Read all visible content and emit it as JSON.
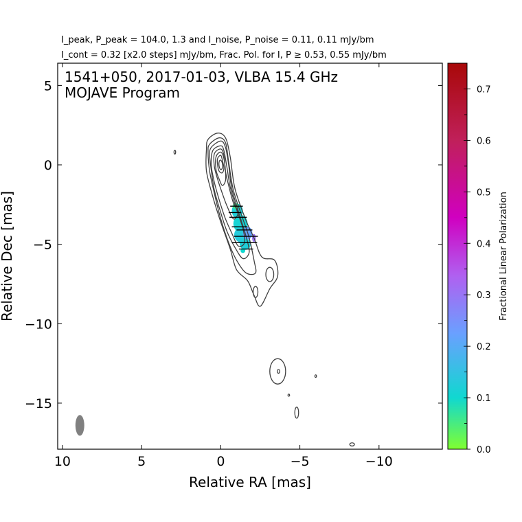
{
  "chart_data": {
    "type": "contour",
    "header": {
      "line1": "I_peak, P_peak = 104.0, 1.3 and I_noise, P_noise = 0.11, 0.11 mJy/bm",
      "line2": "I_cont = 0.32 [x2.0 steps] mJy/bm, Frac. Pol. for I, P ≥ 0.53, 0.55 mJy/bm"
    },
    "title": "1541+050, 2017-01-03, VLBA 15.4 GHz",
    "subtitle": "MOJAVE Program",
    "xlabel": "Relative RA [mas]",
    "ylabel": "Relative Dec [mas]",
    "xlim": [
      10.3,
      -14.0
    ],
    "ylim": [
      -17.9,
      6.4
    ],
    "x_ticks": [
      10,
      5,
      0,
      -5,
      -10
    ],
    "y_ticks": [
      5,
      0,
      -5,
      -10,
      -15
    ],
    "colorbar": {
      "label": "Fractional Linear Polarization",
      "range": [
        0.0,
        0.75
      ],
      "ticks": [
        0.0,
        0.1,
        0.2,
        0.3,
        0.4,
        0.5,
        0.6,
        0.7
      ],
      "colors": [
        "#80ff30",
        "#10d8d0",
        "#6aa0ff",
        "#b060f0",
        "#d000c0",
        "#c0205a",
        "#a80808"
      ]
    },
    "core_contours": [
      {
        "level": 1,
        "points": [
          [
            0.8,
            1.6
          ],
          [
            0.2,
            2.0
          ],
          [
            -0.3,
            1.7
          ],
          [
            -0.6,
            0.5
          ],
          [
            -0.9,
            -1.5
          ],
          [
            -1.6,
            -3.5
          ],
          [
            -2.1,
            -4.6
          ],
          [
            -2.6,
            -5.8
          ],
          [
            -3.4,
            -6.0
          ],
          [
            -3.6,
            -7.0
          ],
          [
            -3.1,
            -7.8
          ],
          [
            -2.5,
            -8.9
          ],
          [
            -2.1,
            -8.2
          ],
          [
            -1.7,
            -7.3
          ],
          [
            -1.0,
            -6.6
          ],
          [
            -0.6,
            -5.3
          ],
          [
            0.0,
            -3.6
          ],
          [
            0.5,
            -2.0
          ],
          [
            0.9,
            -0.4
          ],
          [
            0.9,
            1.0
          ]
        ]
      },
      {
        "level": 2,
        "points": [
          [
            0.7,
            1.3
          ],
          [
            0.1,
            1.7
          ],
          [
            -0.3,
            1.4
          ],
          [
            -0.5,
            0.2
          ],
          [
            -0.8,
            -1.6
          ],
          [
            -1.4,
            -3.4
          ],
          [
            -1.8,
            -4.6
          ],
          [
            -2.1,
            -6.0
          ],
          [
            -2.2,
            -6.8
          ],
          [
            -1.6,
            -6.8
          ],
          [
            -1.0,
            -6.0
          ],
          [
            -0.5,
            -4.9
          ],
          [
            0.0,
            -3.4
          ],
          [
            0.4,
            -1.8
          ],
          [
            0.7,
            -0.4
          ],
          [
            0.8,
            0.8
          ]
        ]
      },
      {
        "level": 4,
        "points": [
          [
            0.6,
            1.1
          ],
          [
            0.0,
            1.5
          ],
          [
            -0.3,
            1.1
          ],
          [
            -0.5,
            0.0
          ],
          [
            -0.7,
            -1.5
          ],
          [
            -1.2,
            -3.2
          ],
          [
            -1.6,
            -4.5
          ],
          [
            -1.8,
            -5.5
          ],
          [
            -1.4,
            -5.9
          ],
          [
            -0.9,
            -5.2
          ],
          [
            -0.4,
            -4.2
          ],
          [
            0.0,
            -3.0
          ],
          [
            0.4,
            -1.6
          ],
          [
            0.6,
            -0.3
          ],
          [
            0.7,
            0.6
          ]
        ]
      },
      {
        "level": 8,
        "points": [
          [
            0.5,
            0.9
          ],
          [
            0.0,
            1.2
          ],
          [
            -0.2,
            0.9
          ],
          [
            -0.4,
            -0.2
          ],
          [
            -0.6,
            -1.4
          ],
          [
            -1.0,
            -2.8
          ],
          [
            -1.4,
            -4.0
          ],
          [
            -1.5,
            -4.9
          ],
          [
            -1.1,
            -5.1
          ],
          [
            -0.7,
            -4.3
          ],
          [
            -0.3,
            -3.4
          ],
          [
            0.1,
            -2.2
          ],
          [
            0.4,
            -1.1
          ],
          [
            0.6,
            0.0
          ]
        ]
      },
      {
        "level": 16,
        "points": [
          [
            0.4,
            0.7
          ],
          [
            0.0,
            1.0
          ],
          [
            -0.2,
            0.6
          ],
          [
            -0.3,
            -0.4
          ],
          [
            -0.5,
            -1.3
          ],
          [
            -0.8,
            -2.4
          ],
          [
            -1.1,
            -3.0
          ],
          [
            -0.8,
            -3.4
          ],
          [
            -0.4,
            -2.6
          ],
          [
            -0.1,
            -1.8
          ],
          [
            0.2,
            -0.9
          ],
          [
            0.4,
            -0.1
          ]
        ]
      },
      {
        "level": 32,
        "points": [
          [
            0.3,
            0.5
          ],
          [
            0.0,
            0.8
          ],
          [
            -0.2,
            0.4
          ],
          [
            -0.3,
            -0.4
          ],
          [
            -0.3,
            -1.0
          ],
          [
            -0.1,
            -1.3
          ],
          [
            0.1,
            -0.9
          ],
          [
            0.3,
            -0.3
          ]
        ]
      },
      {
        "level": 64,
        "points": [
          [
            0.2,
            0.4
          ],
          [
            0.0,
            0.6
          ],
          [
            -0.1,
            0.3
          ],
          [
            -0.2,
            -0.2
          ],
          [
            -0.1,
            -0.5
          ],
          [
            0.1,
            -0.4
          ],
          [
            0.2,
            0.0
          ]
        ]
      },
      {
        "level": 128,
        "points": [
          [
            0.1,
            0.2
          ],
          [
            0.0,
            0.3
          ],
          [
            -0.1,
            0.1
          ],
          [
            -0.1,
            -0.2
          ],
          [
            0.0,
            -0.3
          ],
          [
            0.1,
            -0.1
          ]
        ]
      }
    ],
    "islands": [
      {
        "x": -3.1,
        "y": -6.9,
        "rx": 0.25,
        "ry": 0.45
      },
      {
        "x": -2.2,
        "y": -8.0,
        "rx": 0.15,
        "ry": 0.35
      },
      {
        "x": -3.6,
        "y": -13.0,
        "rx": 0.5,
        "ry": 0.8
      },
      {
        "x": -3.65,
        "y": -13.0,
        "rx": 0.08,
        "ry": 0.12
      },
      {
        "x": 2.9,
        "y": 0.8,
        "rx": 0.05,
        "ry": 0.12
      },
      {
        "x": -6.0,
        "y": -13.3,
        "rx": 0.03,
        "ry": 0.08
      },
      {
        "x": -4.3,
        "y": -14.5,
        "rx": 0.03,
        "ry": 0.07
      },
      {
        "x": -4.8,
        "y": -15.6,
        "rx": 0.12,
        "ry": 0.35
      },
      {
        "x": -8.3,
        "y": -17.6,
        "rx": 0.15,
        "ry": 0.1
      }
    ],
    "polarization_patches": [
      {
        "x": -1.05,
        "y": -2.9,
        "rx": 0.35,
        "ry": 0.45,
        "frac": 0.12
      },
      {
        "x": -1.25,
        "y": -3.7,
        "rx": 0.45,
        "ry": 0.55,
        "frac": 0.11
      },
      {
        "x": -1.35,
        "y": -4.4,
        "rx": 0.5,
        "ry": 0.5,
        "frac": 0.13
      },
      {
        "x": -1.7,
        "y": -4.3,
        "rx": 0.3,
        "ry": 0.4,
        "frac": 0.22
      },
      {
        "x": -1.55,
        "y": -5.0,
        "rx": 0.35,
        "ry": 0.35,
        "frac": 0.12
      },
      {
        "x": -1.4,
        "y": -5.4,
        "rx": 0.15,
        "ry": 0.15,
        "frac": 0.1
      },
      {
        "x": -0.95,
        "y": -2.6,
        "rx": 0.2,
        "ry": 0.2,
        "frac": 0.06
      },
      {
        "x": -2.1,
        "y": -4.6,
        "rx": 0.12,
        "ry": 0.25,
        "frac": 0.3
      }
    ],
    "evpa_vectors": [
      {
        "x": -1.0,
        "y": -2.6,
        "len": 0.8
      },
      {
        "x": -1.1,
        "y": -3.3,
        "len": 1.1
      },
      {
        "x": -1.2,
        "y": -3.9,
        "len": 1.0
      },
      {
        "x": -1.5,
        "y": -4.1,
        "len": 1.0
      },
      {
        "x": -1.6,
        "y": -4.5,
        "len": 1.5
      },
      {
        "x": -1.5,
        "y": -4.9,
        "len": 1.6
      },
      {
        "x": -1.6,
        "y": -5.3,
        "len": 0.9
      },
      {
        "x": -0.9,
        "y": -3.0,
        "len": 0.8
      }
    ],
    "beam": {
      "x": 8.9,
      "y": -16.4,
      "rx": 0.28,
      "ry": 0.65,
      "color": "#808080"
    },
    "contour_color": "#404040"
  }
}
